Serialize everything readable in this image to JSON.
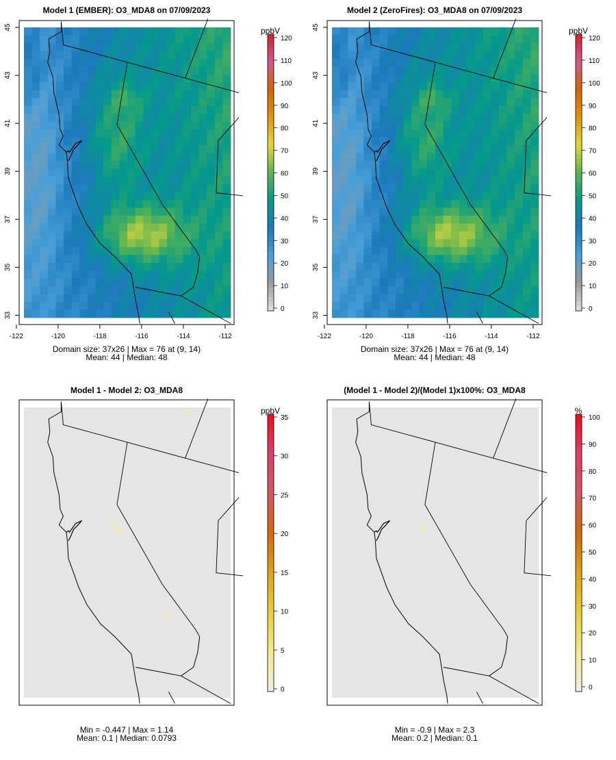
{
  "figure": {
    "panels": [
      {
        "id": "model1",
        "title": "Model 1 (EMBER): O3_MDA8 on 07/09/2023",
        "legend_unit": "ppbV",
        "show_axes": true,
        "stats_line1": "Domain size: 37x26 | Max = 76 at (9, 14)",
        "stats_line2": "Mean: 44 |  Median: 48"
      },
      {
        "id": "model2",
        "title": "Model 2 (ZeroFires): O3_MDA8 on 07/09/2023",
        "legend_unit": "ppbV",
        "show_axes": true,
        "stats_line1": "Domain size: 37x26 | Max = 76 at (9, 14)",
        "stats_line2": "Mean: 44 |  Median: 48"
      },
      {
        "id": "diff",
        "title": "Model 1 - Model 2: O3_MDA8",
        "legend_unit": "ppbV",
        "show_axes": false,
        "stats_line1": "Min = -0.447 | Max = 1.14",
        "stats_line2": "Mean: 0.1 |  Median: 0.0793"
      },
      {
        "id": "pct",
        "title": "(Model 1 - Model 2)/(Model 1)x100%: O3_MDA8",
        "legend_unit": "%",
        "show_axes": false,
        "stats_line1": "Min = -0.9 | Max = 2.3",
        "stats_line2": "Mean: 0.2 |  Median: 0.1"
      }
    ]
  },
  "chart_data": [
    {
      "type": "heatmap",
      "title": "Model 1 (EMBER): O3_MDA8 on 07/09/2023",
      "variable": "O3_MDA8",
      "units": "ppbV",
      "grid": "37x26",
      "x_ticks": [
        -122,
        -120,
        -118,
        -116,
        -114,
        -112
      ],
      "y_ticks": [
        33,
        35,
        37,
        39,
        41,
        43,
        45
      ],
      "xlim": [
        -121.8,
        -111.9
      ],
      "ylim": [
        32.9,
        45.0
      ],
      "colorbar_ticks": [
        0,
        10,
        20,
        30,
        40,
        50,
        60,
        70,
        80,
        90,
        100,
        110,
        120
      ],
      "colorbar_range": [
        0,
        120
      ],
      "max": 76,
      "max_cell": "(9, 14)",
      "mean": 44,
      "median": 48
    },
    {
      "type": "heatmap",
      "title": "Model 2 (ZeroFires): O3_MDA8 on 07/09/2023",
      "variable": "O3_MDA8",
      "units": "ppbV",
      "grid": "37x26",
      "x_ticks": [
        -122,
        -120,
        -118,
        -116,
        -114,
        -112
      ],
      "y_ticks": [
        33,
        35,
        37,
        39,
        41,
        43,
        45
      ],
      "xlim": [
        -121.8,
        -111.9
      ],
      "ylim": [
        32.9,
        45.0
      ],
      "colorbar_ticks": [
        0,
        10,
        20,
        30,
        40,
        50,
        60,
        70,
        80,
        90,
        100,
        110,
        120
      ],
      "colorbar_range": [
        0,
        120
      ],
      "max": 76,
      "max_cell": "(9, 14)",
      "mean": 44,
      "median": 48
    },
    {
      "type": "heatmap",
      "title": "Model 1 - Model 2: O3_MDA8",
      "units": "ppbV",
      "colorbar_ticks": [
        0,
        5,
        10,
        15,
        20,
        25,
        30,
        35
      ],
      "colorbar_range": [
        0,
        35
      ],
      "min": -0.447,
      "max": 1.14,
      "mean": 0.1,
      "median": 0.0793
    },
    {
      "type": "heatmap",
      "title": "(Model 1 - Model 2)/(Model 1)x100%: O3_MDA8",
      "units": "%",
      "colorbar_ticks": [
        0,
        10,
        20,
        30,
        40,
        50,
        60,
        70,
        80,
        90,
        100
      ],
      "colorbar_range": [
        0,
        100
      ],
      "min": -0.9,
      "max": 2.3,
      "mean": 0.2,
      "median": 0.1
    }
  ],
  "colors": {
    "ramp": [
      "#e0e0e0",
      "#9a9a9a",
      "#4a9fd8",
      "#1b79bb",
      "#059a8a",
      "#5cb451",
      "#e4d73c",
      "#e0930c",
      "#cf6700",
      "#cb5c8f",
      "#d2242c"
    ],
    "diff_ramp": [
      "#efeee3",
      "#f3ea89",
      "#e9ce3b",
      "#e0a01c",
      "#d26a0b",
      "#cf5a5e",
      "#dc3f68",
      "#ea0f1f"
    ],
    "empty_fill": "#e5e5e5",
    "map_line": "#000000"
  }
}
